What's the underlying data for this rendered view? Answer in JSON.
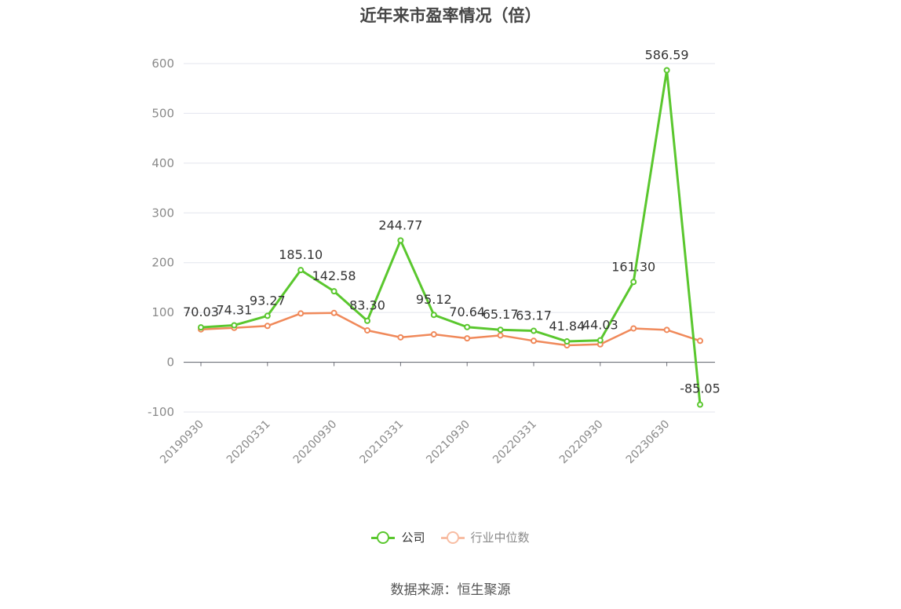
{
  "chart_data": {
    "type": "line",
    "title": "近年来市盈率情况（倍）",
    "x_tick_labels": [
      "20190930",
      "20200331",
      "20200930",
      "20210331",
      "20210930",
      "20220331",
      "20220930",
      "20230630"
    ],
    "x": [
      "20190930",
      "20191231",
      "20200331",
      "20200630",
      "20200930",
      "20201231",
      "20210331",
      "20210630",
      "20210930",
      "20211231",
      "20220331",
      "20220630",
      "20220930",
      "20221231",
      "20230630",
      "20231231"
    ],
    "series": [
      {
        "name": "公司",
        "color": "#5ac72e",
        "values": [
          70.03,
          74.31,
          93.27,
          185.1,
          142.58,
          83.3,
          244.77,
          95.12,
          70.64,
          65.17,
          63.17,
          41.84,
          44.03,
          161.3,
          586.59,
          -85.05
        ],
        "labels": [
          "70.03",
          "74.31",
          "93.27",
          "185.10",
          "142.58",
          "83.30",
          "244.77",
          "95.12",
          "70.64",
          "65.17",
          "63.17",
          "41.84",
          "44.03",
          "161.30",
          "586.59",
          "-85.05"
        ]
      },
      {
        "name": "行业中位数",
        "color": "#f0895a",
        "values": [
          66,
          69,
          73,
          98,
          99,
          64,
          50,
          56,
          48,
          54,
          43,
          34,
          36,
          68,
          65,
          43
        ]
      }
    ],
    "ylim": [
      -100,
      600
    ],
    "yticks": [
      -100,
      0,
      100,
      200,
      300,
      400,
      500,
      600
    ],
    "grid": true,
    "legend_position": "bottom"
  },
  "legend": [
    {
      "label": "公司",
      "color": "#5ac72e",
      "fill": "#5ac72e"
    },
    {
      "label": "行业中位数",
      "color": "#f8bda3",
      "fill": "#f8bda3"
    }
  ],
  "source": "数据来源：恒生聚源"
}
